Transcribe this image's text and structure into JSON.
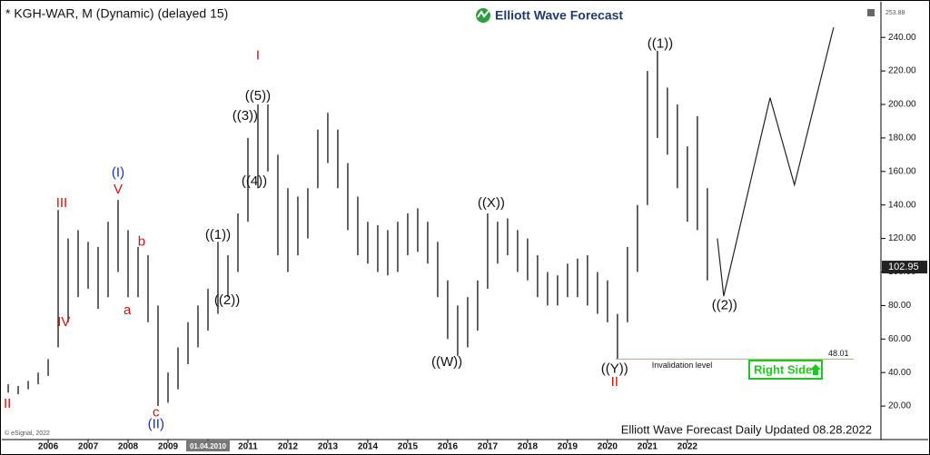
{
  "chart_data": {
    "type": "hilo",
    "title": "* KGH-WAR, M (Dynamic) (delayed 15)",
    "brand": "Elliott Wave Forecast",
    "footer": "Elliott Wave Forecast Daily Updated 08.28.2022",
    "copyright": "© eSignal, 2022",
    "button": "Right Side",
    "top_value": 253.88,
    "last_price": 102.95,
    "color": "#333333",
    "xlim": [
      2004.84,
      2026.8
    ],
    "ylim": [
      0,
      258
    ],
    "xticks": [
      2006,
      2007,
      2008,
      2009,
      {
        "value": 2010,
        "label": "01.04.2010"
      },
      2011,
      2012,
      2013,
      2014,
      2015,
      2016,
      2017,
      2018,
      2019,
      2020,
      2021,
      2022
    ],
    "yticks": [
      {
        "value": 20,
        "label": "20.00"
      },
      {
        "value": 40,
        "label": "40.00"
      },
      {
        "value": 60,
        "label": "60.00"
      },
      {
        "value": 80,
        "label": "80.00"
      },
      {
        "value": 100,
        "label": "100.00"
      },
      {
        "value": 120,
        "label": "120.00"
      },
      {
        "value": 140,
        "label": "140.00"
      },
      {
        "value": 160,
        "label": "160.00"
      },
      {
        "value": 180,
        "label": "180.00"
      },
      {
        "value": 200,
        "label": "200.00"
      },
      {
        "value": 220,
        "label": "220.00"
      },
      {
        "value": 240,
        "label": "240.00"
      }
    ],
    "x": [
      2005.0,
      2005.25,
      2005.5,
      2005.75,
      2006.0,
      2006.25,
      2006.5,
      2006.75,
      2007.0,
      2007.25,
      2007.5,
      2007.75,
      2008.0,
      2008.25,
      2008.5,
      2008.75,
      2009.0,
      2009.25,
      2009.5,
      2009.75,
      2010.0,
      2010.25,
      2010.5,
      2010.75,
      2011.0,
      2011.25,
      2011.5,
      2011.75,
      2012.0,
      2012.25,
      2012.5,
      2012.75,
      2013.0,
      2013.25,
      2013.5,
      2013.75,
      2014.0,
      2014.25,
      2014.5,
      2014.75,
      2015.0,
      2015.25,
      2015.5,
      2015.75,
      2016.0,
      2016.25,
      2016.5,
      2016.75,
      2017.0,
      2017.25,
      2017.5,
      2017.75,
      2018.0,
      2018.25,
      2018.5,
      2018.75,
      2019.0,
      2019.25,
      2019.5,
      2019.75,
      2020.0,
      2020.25,
      2020.5,
      2020.75,
      2021.0,
      2021.25,
      2021.5,
      2021.75,
      2022.0,
      2022.25,
      2022.5
    ],
    "high": [
      33,
      32,
      35,
      40,
      48,
      137,
      120,
      125,
      118,
      115,
      130,
      143,
      125,
      115,
      110,
      80,
      40,
      55,
      70,
      80,
      90,
      118,
      110,
      135,
      180,
      200,
      200,
      170,
      150,
      145,
      150,
      185,
      195,
      185,
      165,
      145,
      130,
      128,
      125,
      130,
      135,
      138,
      130,
      118,
      95,
      80,
      85,
      95,
      135,
      130,
      132,
      125,
      120,
      110,
      100,
      98,
      105,
      108,
      110,
      100,
      95,
      75,
      115,
      140,
      220,
      232,
      210,
      200,
      175,
      193,
      150
    ],
    "low": [
      28,
      27,
      30,
      33,
      38,
      55,
      70,
      85,
      90,
      78,
      85,
      100,
      85,
      85,
      70,
      20,
      22,
      30,
      45,
      55,
      65,
      75,
      85,
      100,
      130,
      150,
      160,
      110,
      100,
      110,
      120,
      150,
      165,
      150,
      125,
      110,
      105,
      100,
      98,
      100,
      110,
      112,
      105,
      85,
      60,
      50,
      55,
      65,
      90,
      105,
      110,
      100,
      95,
      85,
      80,
      80,
      85,
      85,
      80,
      75,
      70,
      48,
      70,
      100,
      140,
      180,
      170,
      150,
      130,
      125,
      95
    ],
    "annotations": [
      {
        "text": "II",
        "x": 2004.98,
        "y": 21,
        "color": "#d01010"
      },
      {
        "text": "III",
        "x": 2006.34,
        "y": 141,
        "color": "#d01010"
      },
      {
        "text": "IV",
        "x": 2006.39,
        "y": 70,
        "color": "#d01010"
      },
      {
        "text": "(I)",
        "x": 2007.75,
        "y": 159,
        "color": "#1a2fb0"
      },
      {
        "text": "V",
        "x": 2007.75,
        "y": 149,
        "color": "#d01010"
      },
      {
        "text": "b",
        "x": 2008.34,
        "y": 118,
        "color": "#d01010"
      },
      {
        "text": "a",
        "x": 2007.98,
        "y": 77,
        "color": "#d01010"
      },
      {
        "text": "c",
        "x": 2008.7,
        "y": 16,
        "color": "#d01010"
      },
      {
        "text": "(II)",
        "x": 2008.7,
        "y": 9,
        "color": "#1a2fb0"
      },
      {
        "text": "((1))",
        "x": 2010.25,
        "y": 122,
        "color": "#111111"
      },
      {
        "text": "((2))",
        "x": 2010.48,
        "y": 83,
        "color": "#111111"
      },
      {
        "text": "I",
        "x": 2011.25,
        "y": 229,
        "color": "#d01010"
      },
      {
        "text": "((5))",
        "x": 2011.25,
        "y": 205,
        "color": "#111111"
      },
      {
        "text": "((3))",
        "x": 2010.93,
        "y": 193,
        "color": "#111111"
      },
      {
        "text": "((4))",
        "x": 2011.16,
        "y": 154,
        "color": "#111111"
      },
      {
        "text": "((W))",
        "x": 2015.98,
        "y": 46,
        "color": "#111111"
      },
      {
        "text": "((X))",
        "x": 2017.09,
        "y": 141,
        "color": "#111111"
      },
      {
        "text": "((Y))",
        "x": 2020.18,
        "y": 42,
        "color": "#111111"
      },
      {
        "text": "II",
        "x": 2020.18,
        "y": 34,
        "color": "#d01010"
      },
      {
        "text": "((1))",
        "x": 2021.32,
        "y": 236,
        "color": "#111111"
      },
      {
        "text": "((2))",
        "x": 2022.93,
        "y": 80,
        "color": "#111111"
      }
    ],
    "projection": {
      "x": [
        2022.75,
        2022.91,
        2024.07,
        2024.68,
        2025.66
      ],
      "y": [
        120,
        85.6,
        204,
        152,
        246
      ]
    },
    "invalidation": {
      "label": "Invalidation level",
      "value": 48.01,
      "x_start": 2020.2
    }
  }
}
